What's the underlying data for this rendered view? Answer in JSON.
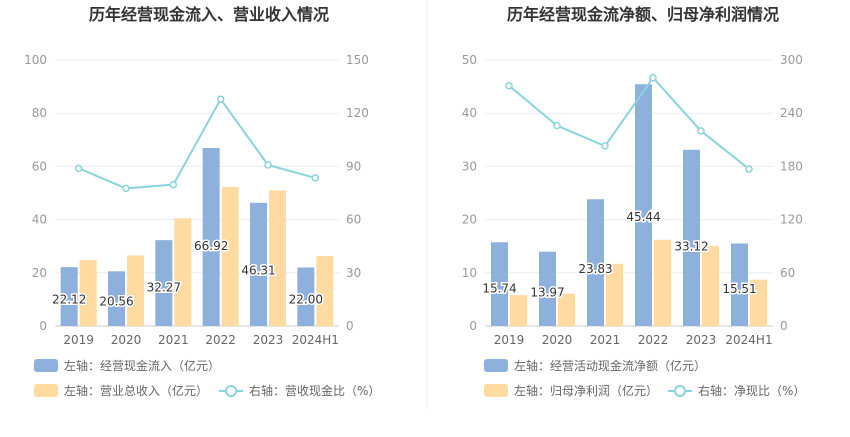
{
  "chart_data": [
    {
      "type": "bar",
      "title": "历年经营现金流入、营业收入情况",
      "categories": [
        "2019",
        "2020",
        "2021",
        "2022",
        "2023",
        "2024H1"
      ],
      "ylim_left": [
        0,
        100
      ],
      "yticks_left": [
        "0",
        "20",
        "40",
        "60",
        "80",
        "100"
      ],
      "ylim_right": [
        0,
        150
      ],
      "yticks_right": [
        "0",
        "30",
        "60",
        "90",
        "120",
        "150"
      ],
      "grid": true,
      "legend_position": "bottom",
      "series": [
        {
          "name": "左轴：经营现金流入（亿元）",
          "kind": "bar",
          "axis": "left",
          "color": "#8eb0dc",
          "values": [
            22.12,
            20.56,
            32.27,
            66.92,
            46.31,
            22.0
          ],
          "labels": [
            "22.12",
            "20.56",
            "32.27",
            "66.92",
            "46.31",
            "22.00"
          ]
        },
        {
          "name": "左轴：营业总收入（亿元）",
          "kind": "bar",
          "axis": "left",
          "color": "#ffdba1",
          "values": [
            24.8,
            26.5,
            40.5,
            52.3,
            51.0,
            26.3
          ]
        },
        {
          "name": "右轴：营收现金比（%）",
          "kind": "line",
          "axis": "right",
          "color": "#89d4dd",
          "values": [
            88.9,
            77.6,
            79.7,
            127.9,
            90.8,
            83.5
          ]
        }
      ]
    },
    {
      "type": "bar",
      "title": "历年经营现金流净额、归母净利润情况",
      "categories": [
        "2019",
        "2020",
        "2021",
        "2022",
        "2023",
        "2024H1"
      ],
      "ylim_left": [
        0,
        50
      ],
      "yticks_left": [
        "0",
        "10",
        "20",
        "30",
        "40",
        "50"
      ],
      "ylim_right": [
        0,
        300
      ],
      "yticks_right": [
        "0",
        "60",
        "120",
        "180",
        "240",
        "300"
      ],
      "grid": true,
      "legend_position": "bottom",
      "series": [
        {
          "name": "左轴：经营活动现金流净额（亿元）",
          "kind": "bar",
          "axis": "left",
          "color": "#8eb0dc",
          "values": [
            15.74,
            13.97,
            23.83,
            45.44,
            33.12,
            15.51
          ],
          "labels": [
            "15.74",
            "13.97",
            "23.83",
            "45.44",
            "33.12",
            "15.51"
          ]
        },
        {
          "name": "左轴：归母净利润（亿元）",
          "kind": "bar",
          "axis": "left",
          "color": "#ffdba1",
          "values": [
            5.8,
            6.1,
            11.7,
            16.2,
            15.0,
            8.7
          ]
        },
        {
          "name": "右轴：净现比（%）",
          "kind": "line",
          "axis": "right",
          "color": "#89d4dd",
          "values": [
            271,
            226,
            203,
            280,
            220,
            177
          ]
        }
      ]
    }
  ]
}
